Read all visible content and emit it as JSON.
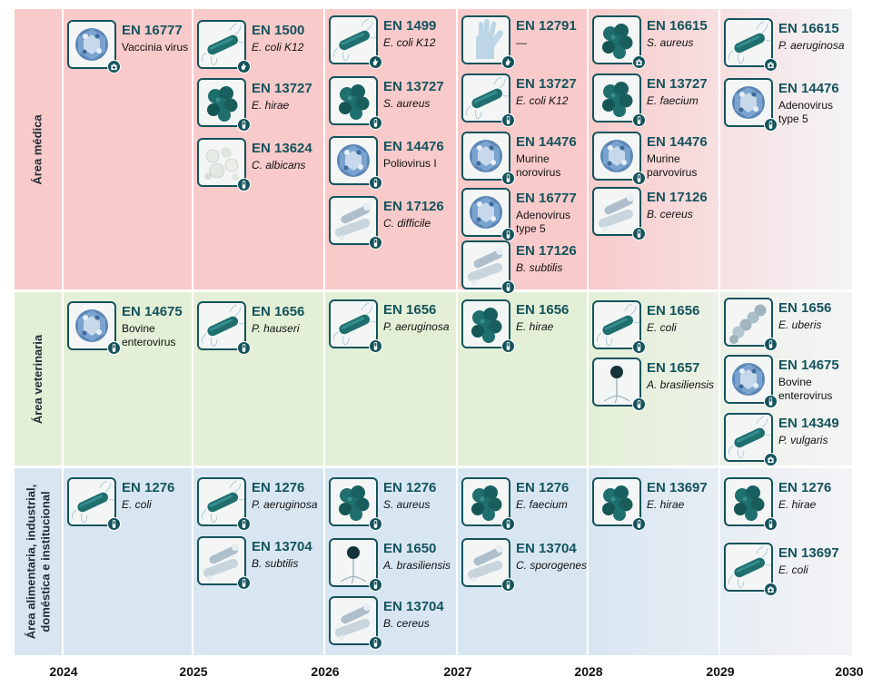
{
  "years": [
    "2024",
    "2025",
    "2026",
    "2027",
    "2028",
    "2029",
    "2030"
  ],
  "areas": [
    {
      "label": "Área médica",
      "bg": "#f9caca",
      "fade": "#f4f4f6"
    },
    {
      "label": "Área veterinaria",
      "bg": "#e3efd6",
      "fade": "#f4f4f6"
    },
    {
      "label": "Área alimentaria, industrial,\ndoméstica e institucional",
      "bg": "#d8e6f2",
      "fade": "#f4f4f6"
    }
  ],
  "cards": [
    {
      "code": "EN 16777",
      "org": "Vaccinia virus",
      "italic": false,
      "icon": "virus-particle-icon",
      "badge": "hospital-icon"
    },
    {
      "code": "EN 1500",
      "org": "E. coli K12",
      "italic": true,
      "icon": "rod-bacterium-icon",
      "badge": "hand-icon"
    },
    {
      "code": "EN 13727",
      "org": "E. hirae",
      "italic": true,
      "icon": "coccus-cluster-icon",
      "badge": "test-tube-icon"
    },
    {
      "code": "EN 13624",
      "org": "C. albicans",
      "italic": true,
      "icon": "yeast-cells-icon",
      "badge": "test-tube-icon"
    },
    {
      "code": "EN 1499",
      "org": "E. coli K12",
      "italic": true,
      "icon": "rod-bacterium-icon",
      "badge": "hand-icon"
    },
    {
      "code": "EN 13727",
      "org": "S. aureus",
      "italic": true,
      "icon": "coccus-cluster-icon",
      "badge": "test-tube-icon"
    },
    {
      "code": "EN 14476",
      "org": "Poliovirus I",
      "italic": false,
      "icon": "virus-particle-icon",
      "badge": "test-tube-icon"
    },
    {
      "code": "EN 17126",
      "org": "C. difficile",
      "italic": true,
      "icon": "spore-rod-icon",
      "badge": "test-tube-icon"
    },
    {
      "code": "EN 12791",
      "org": "—",
      "italic": false,
      "icon": "glove-icon",
      "badge": "hand-icon"
    },
    {
      "code": "EN 13727",
      "org": "E. coli K12",
      "italic": true,
      "icon": "rod-bacterium-icon",
      "badge": "test-tube-icon"
    },
    {
      "code": "EN 14476",
      "org": "Murine\nnorovirus",
      "italic": false,
      "icon": "virus-particle-icon",
      "badge": "test-tube-icon"
    },
    {
      "code": "EN 16777",
      "org": "Adenovirus\ntype 5",
      "italic": false,
      "icon": "virus-particle-icon",
      "badge": "test-tube-icon"
    },
    {
      "code": "EN 17126",
      "org": "B. subtilis",
      "italic": true,
      "icon": "spore-rod-icon",
      "badge": "test-tube-icon"
    },
    {
      "code": "EN 16615",
      "org": "S. aureus",
      "italic": true,
      "icon": "coccus-cluster-icon",
      "badge": "hospital-icon"
    },
    {
      "code": "EN 13727",
      "org": "E. faecium",
      "italic": true,
      "icon": "coccus-cluster-icon",
      "badge": "test-tube-icon"
    },
    {
      "code": "EN 14476",
      "org": "Murine\nparvovirus",
      "italic": false,
      "icon": "virus-particle-icon",
      "badge": "test-tube-icon"
    },
    {
      "code": "EN 17126",
      "org": "B. cereus",
      "italic": true,
      "icon": "spore-rod-icon",
      "badge": "test-tube-icon"
    },
    {
      "code": "EN 16615",
      "org": "P. aeruginosa",
      "italic": true,
      "icon": "rod-bacterium-icon",
      "badge": "hospital-icon"
    },
    {
      "code": "EN 14476",
      "org": "Adenovirus\ntype 5",
      "italic": false,
      "icon": "virus-particle-icon",
      "badge": "test-tube-icon"
    },
    {
      "code": "EN 14675",
      "org": "Bovine\nenterovirus",
      "italic": false,
      "icon": "virus-particle-icon",
      "badge": "test-tube-icon"
    },
    {
      "code": "EN 1656",
      "org": "P. hauseri",
      "italic": true,
      "icon": "rod-bacterium-icon",
      "badge": "test-tube-icon"
    },
    {
      "code": "EN 1656",
      "org": "P. aeruginosa",
      "italic": true,
      "icon": "rod-bacterium-icon",
      "badge": "test-tube-icon"
    },
    {
      "code": "EN 1656",
      "org": "E. hirae",
      "italic": true,
      "icon": "coccus-cluster-icon",
      "badge": "test-tube-icon"
    },
    {
      "code": "EN 1656",
      "org": "E. coli",
      "italic": true,
      "icon": "rod-bacterium-icon",
      "badge": "test-tube-icon"
    },
    {
      "code": "EN 1657",
      "org": "A. brasiliensis",
      "italic": true,
      "icon": "mold-spore-icon",
      "badge": "test-tube-icon"
    },
    {
      "code": "EN 1656",
      "org": "E. uberis",
      "italic": true,
      "icon": "coccus-chain-icon",
      "badge": "test-tube-icon"
    },
    {
      "code": "EN 14675",
      "org": "Bovine\nenterovirus",
      "italic": false,
      "icon": "virus-particle-icon",
      "badge": "test-tube-icon"
    },
    {
      "code": "EN 14349",
      "org": "P. vulgaris",
      "italic": true,
      "icon": "rod-bacterium-icon",
      "badge": "hospital-icon"
    },
    {
      "code": "EN 1276",
      "org": "E. coli",
      "italic": true,
      "icon": "rod-bacterium-icon",
      "badge": "test-tube-icon"
    },
    {
      "code": "EN 1276",
      "org": "P. aeruginosa",
      "italic": true,
      "icon": "rod-bacterium-icon",
      "badge": "test-tube-icon"
    },
    {
      "code": "EN 13704",
      "org": "B. subtilis",
      "italic": true,
      "icon": "spore-rod-icon",
      "badge": "test-tube-icon"
    },
    {
      "code": "EN 1276",
      "org": "S. aureus",
      "italic": true,
      "icon": "coccus-cluster-icon",
      "badge": "test-tube-icon"
    },
    {
      "code": "EN 1650",
      "org": "A. brasiliensis",
      "italic": true,
      "icon": "mold-spore-icon",
      "badge": "test-tube-icon"
    },
    {
      "code": "EN 13704",
      "org": "B. cereus",
      "italic": true,
      "icon": "spore-rod-icon",
      "badge": "test-tube-icon"
    },
    {
      "code": "EN 1276",
      "org": "E. faecium",
      "italic": true,
      "icon": "coccus-cluster-icon",
      "badge": "test-tube-icon"
    },
    {
      "code": "EN 13704",
      "org": "C. sporogenes",
      "italic": true,
      "icon": "spore-rod-icon",
      "badge": "test-tube-icon"
    },
    {
      "code": "EN 13697",
      "org": "E. hirae",
      "italic": true,
      "icon": "coccus-cluster-icon",
      "badge": "test-tube-icon"
    },
    {
      "code": "EN 1276",
      "org": "E. hirae",
      "italic": true,
      "icon": "coccus-cluster-icon",
      "badge": "test-tube-icon"
    },
    {
      "code": "EN 13697",
      "org": "E. coli",
      "italic": true,
      "icon": "rod-bacterium-icon",
      "badge": "hospital-icon"
    }
  ],
  "colors": {
    "accent": "#14535c",
    "icon_teal": "#1f6f6f",
    "icon_light": "#9fc3cf"
  }
}
